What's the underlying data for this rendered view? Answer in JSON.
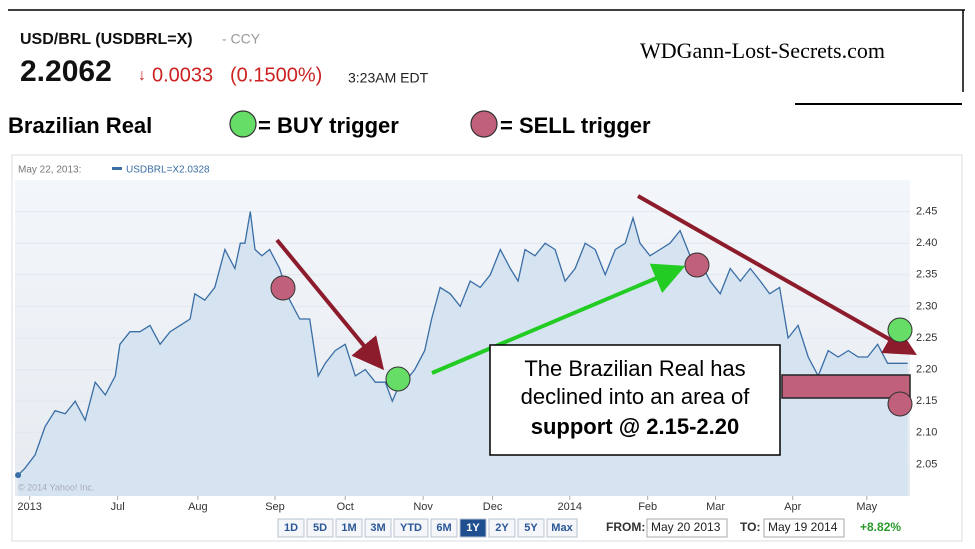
{
  "quote": {
    "symbol": "USD/BRL (USDBRL=X)",
    "kind": "- CCY",
    "price": "2.2062",
    "change": "0.0033",
    "change_pct": "(0.1500%)",
    "time": "3:23AM EDT"
  },
  "site": "WDGann-Lost-Secrets.com",
  "legend": {
    "title": "Brazilian Real",
    "buy": "= BUY trigger",
    "sell": "= SELL trigger"
  },
  "callout": {
    "lines": [
      "The Brazilian Real has",
      "declined into an area of"
    ],
    "emphasis": "support @ 2.15-2.20"
  },
  "controls": {
    "ranges": [
      "1D",
      "5D",
      "1M",
      "3M",
      "YTD",
      "6M",
      "1Y",
      "2Y",
      "5Y",
      "Max"
    ],
    "from_label": "FROM:",
    "from": "May 20 2013",
    "to_label": "TO:",
    "to": "May 19 2014",
    "performance": "+8.82%"
  },
  "chart_data": {
    "type": "area",
    "hover_date": "May 22, 2013:",
    "series_name": "USDBRL=X",
    "hover_value": 2.0328,
    "copyright": "© 2014 Yahoo! Inc.",
    "color": "#3a6ea5",
    "fill": "#d6e4f1",
    "grid": true,
    "x": [
      0.04,
      0.13,
      0.26,
      0.39,
      0.52,
      0.65,
      0.78,
      0.91,
      1.04,
      1.17,
      1.3,
      1.36,
      1.49,
      1.62,
      1.75,
      1.88,
      2.01,
      2.14,
      2.27,
      2.33,
      2.46,
      2.59,
      2.72,
      2.85,
      2.92,
      2.98,
      3.05,
      3.11,
      3.2,
      3.3,
      3.43,
      3.56,
      3.69,
      3.82,
      3.93,
      4.02,
      4.15,
      4.28,
      4.41,
      4.54,
      4.67,
      4.8,
      4.89,
      4.96,
      5.05,
      5.18,
      5.31,
      5.4,
      5.51,
      5.64,
      5.77,
      5.9,
      6.03,
      6.16,
      6.29,
      6.42,
      6.52,
      6.61,
      6.74,
      6.87,
      7.0,
      7.13,
      7.26,
      7.39,
      7.52,
      7.65,
      7.78,
      7.91,
      8.01,
      8.1,
      8.23,
      8.36,
      8.49,
      8.62,
      8.75,
      8.88,
      9.01,
      9.14,
      9.27,
      9.4,
      9.53,
      9.66,
      9.78,
      9.91,
      10.02,
      10.15,
      10.28,
      10.41,
      10.54,
      10.67,
      10.8,
      10.93,
      11.05,
      11.18,
      11.31,
      11.44,
      11.57
    ],
    "values": [
      2.033,
      2.044,
      2.065,
      2.11,
      2.135,
      2.13,
      2.15,
      2.12,
      2.18,
      2.16,
      2.19,
      2.24,
      2.26,
      2.26,
      2.27,
      2.24,
      2.26,
      2.27,
      2.28,
      2.32,
      2.31,
      2.33,
      2.39,
      2.36,
      2.4,
      2.4,
      2.45,
      2.39,
      2.38,
      2.39,
      2.36,
      2.31,
      2.28,
      2.28,
      2.19,
      2.21,
      2.23,
      2.24,
      2.19,
      2.2,
      2.18,
      2.18,
      2.15,
      2.17,
      2.18,
      2.2,
      2.23,
      2.28,
      2.33,
      2.32,
      2.3,
      2.34,
      2.33,
      2.35,
      2.39,
      2.36,
      2.34,
      2.39,
      2.38,
      2.4,
      2.39,
      2.34,
      2.36,
      2.4,
      2.39,
      2.35,
      2.39,
      2.4,
      2.44,
      2.4,
      2.38,
      2.39,
      2.4,
      2.42,
      2.38,
      2.37,
      2.34,
      2.32,
      2.36,
      2.34,
      2.36,
      2.34,
      2.32,
      2.33,
      2.25,
      2.27,
      2.22,
      2.19,
      2.23,
      2.22,
      2.23,
      2.22,
      2.22,
      2.24,
      2.21,
      2.21,
      2.21
    ],
    "xlim": [
      0,
      11.6
    ],
    "xticks": [
      {
        "value": 0.19,
        "label": "2013"
      },
      {
        "value": 1.33,
        "label": "Jul"
      },
      {
        "value": 2.37,
        "label": "Aug"
      },
      {
        "value": 3.37,
        "label": "Sep"
      },
      {
        "value": 4.28,
        "label": "Oct"
      },
      {
        "value": 5.29,
        "label": "Nov"
      },
      {
        "value": 6.19,
        "label": "Dec"
      },
      {
        "value": 7.19,
        "label": "2014"
      },
      {
        "value": 8.2,
        "label": "Feb"
      },
      {
        "value": 9.08,
        "label": "Mar"
      },
      {
        "value": 10.08,
        "label": "Apr"
      },
      {
        "value": 11.04,
        "label": "May"
      }
    ],
    "ylim": [
      2.0,
      2.5
    ],
    "yticks": [
      2.05,
      {
        "value": 2.1,
        "label": "2.10"
      },
      2.15,
      {
        "value": 2.2,
        "label": "2.20"
      },
      2.25,
      {
        "value": 2.3,
        "label": "2.30"
      },
      2.35,
      {
        "value": 2.4,
        "label": "2.40"
      },
      2.45
    ]
  }
}
